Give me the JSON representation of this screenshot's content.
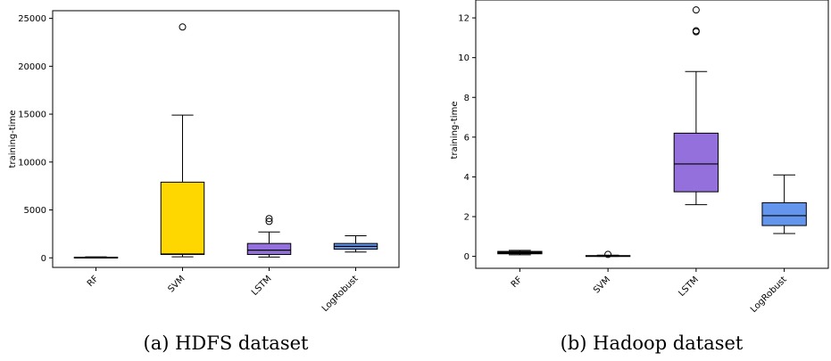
{
  "chart_data": [
    {
      "type": "boxplot",
      "caption": "(a) HDFS dataset",
      "ylabel": "training-time",
      "ylim": [
        -1000,
        25800
      ],
      "yticks": [
        0,
        5000,
        10000,
        15000,
        20000,
        25000
      ],
      "categories": [
        "RF",
        "SVM",
        "LSTM",
        "LogRobust"
      ],
      "boxes": [
        {
          "category": "RF",
          "whislo": 0,
          "q1": 20,
          "med": 40,
          "q3": 70,
          "whishi": 110,
          "fliers": [],
          "color": "#000000"
        },
        {
          "category": "SVM",
          "whislo": 100,
          "q1": 350,
          "med": 400,
          "q3": 7900,
          "whishi": 14900,
          "fliers": [
            24100
          ],
          "color": "#FFD700"
        },
        {
          "category": "LSTM",
          "whislo": 80,
          "q1": 350,
          "med": 800,
          "q3": 1500,
          "whishi": 2700,
          "fliers": [
            3800,
            4100
          ],
          "color": "#9370DB"
        },
        {
          "category": "LogRobust",
          "whislo": 600,
          "q1": 900,
          "med": 1200,
          "q3": 1500,
          "whishi": 2300,
          "fliers": [],
          "color": "#6495ED"
        }
      ]
    },
    {
      "type": "boxplot",
      "caption": "(b) Hadoop dataset",
      "ylabel": "training-time",
      "ylim": [
        -0.6,
        12.9
      ],
      "yticks": [
        0,
        2,
        4,
        6,
        8,
        10,
        12
      ],
      "categories": [
        "RF",
        "SVM",
        "LSTM",
        "LogRobust"
      ],
      "boxes": [
        {
          "category": "RF",
          "whislo": 0.08,
          "q1": 0.13,
          "med": 0.18,
          "q3": 0.25,
          "whishi": 0.3,
          "fliers": [],
          "color": "#000000"
        },
        {
          "category": "SVM",
          "whislo": 0.0,
          "q1": 0.01,
          "med": 0.02,
          "q3": 0.04,
          "whishi": 0.06,
          "fliers": [
            0.1
          ],
          "color": "#000000"
        },
        {
          "category": "LSTM",
          "whislo": 2.6,
          "q1": 3.25,
          "med": 4.65,
          "q3": 6.2,
          "whishi": 9.3,
          "fliers": [
            11.3,
            11.35,
            12.4
          ],
          "color": "#9370DB"
        },
        {
          "category": "LogRobust",
          "whislo": 1.15,
          "q1": 1.55,
          "med": 2.05,
          "q3": 2.7,
          "whishi": 4.1,
          "fliers": [],
          "color": "#6495ED"
        }
      ]
    }
  ]
}
